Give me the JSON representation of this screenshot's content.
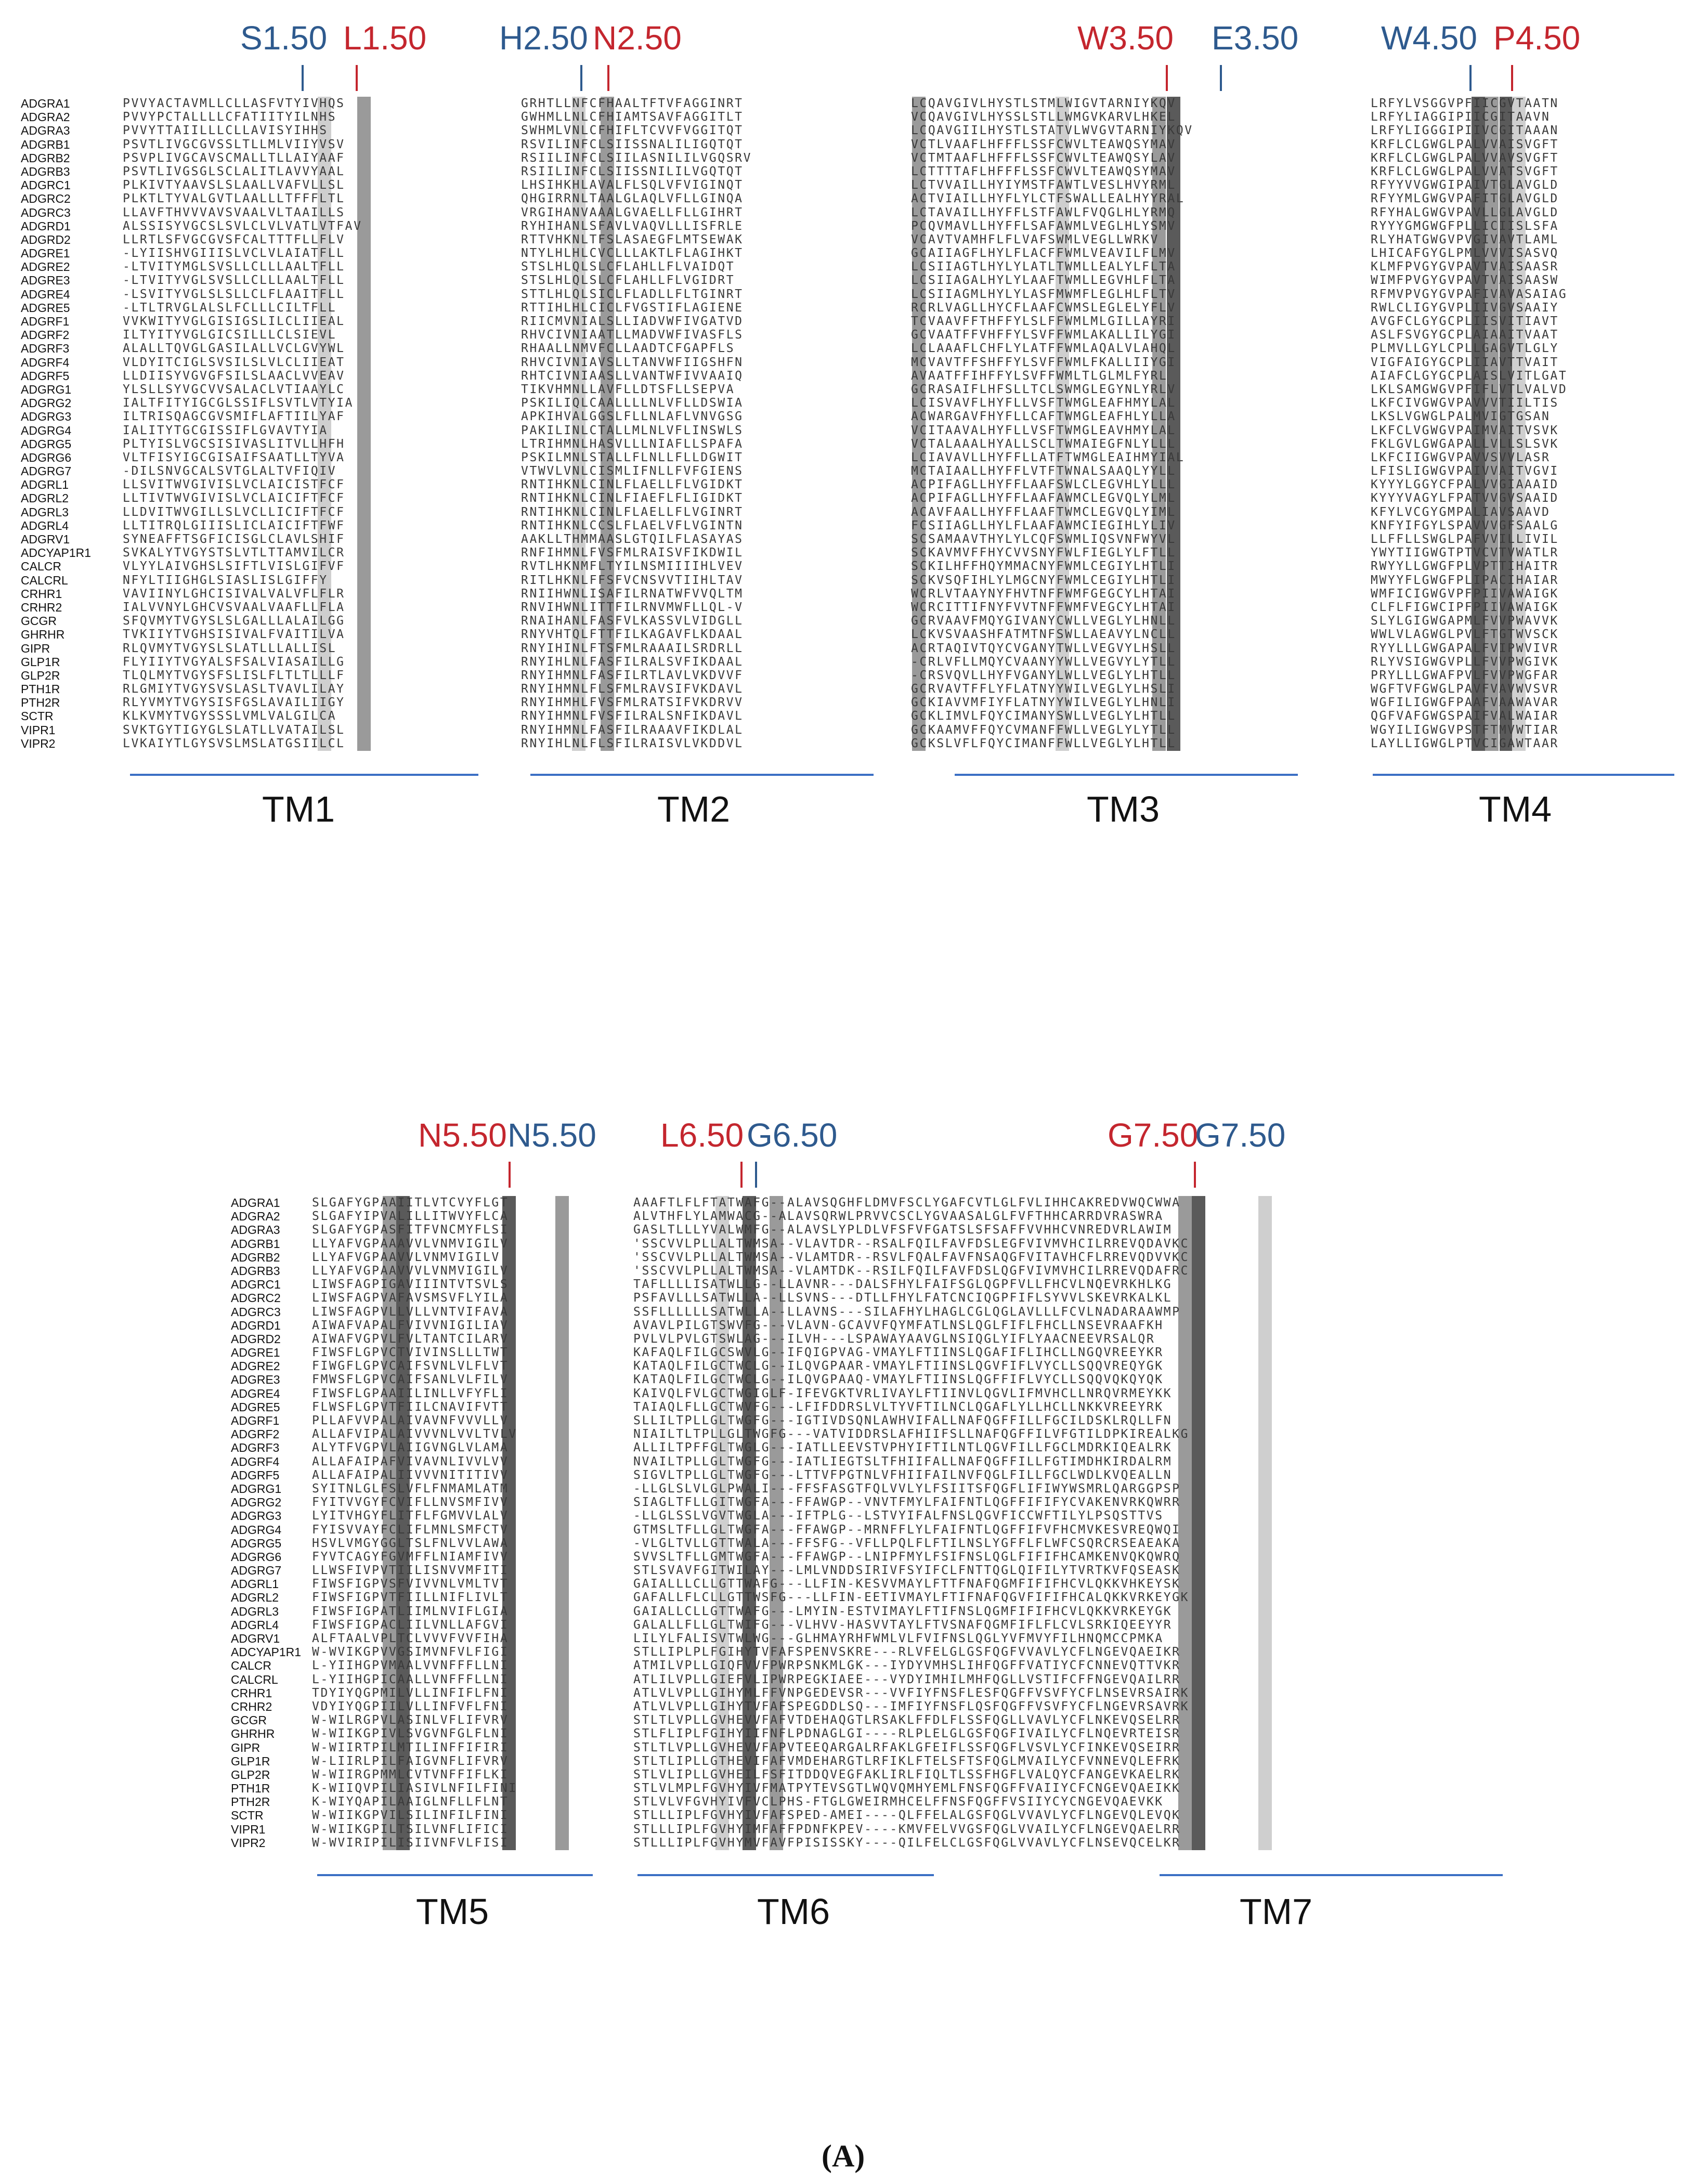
{
  "positions_top": [
    {
      "label": "S1.50",
      "color": "blue"
    },
    {
      "label": "L1.50",
      "color": "red"
    },
    {
      "label": "H2.50",
      "color": "blue"
    },
    {
      "label": "N2.50",
      "color": "red"
    },
    {
      "label": "W3.50",
      "color": "red"
    },
    {
      "label": "E3.50",
      "color": "blue"
    },
    {
      "label": "W4.50",
      "color": "blue"
    },
    {
      "label": "P4.50",
      "color": "red"
    }
  ],
  "positions_bottom": [
    {
      "label": "N5.50",
      "color": "red"
    },
    {
      "label": "N5.50",
      "color": "blue"
    },
    {
      "label": "L6.50",
      "color": "red"
    },
    {
      "label": "G6.50",
      "color": "blue"
    },
    {
      "label": "G7.50",
      "color": "red"
    },
    {
      "label": "G7.50",
      "color": "blue"
    }
  ],
  "receptors": [
    "ADGRA1",
    "ADGRA2",
    "ADGRA3",
    "ADGRB1",
    "ADGRB2",
    "ADGRB3",
    "ADGRC1",
    "ADGRC2",
    "ADGRC3",
    "ADGRD1",
    "ADGRD2",
    "ADGRE1",
    "ADGRE2",
    "ADGRE3",
    "ADGRE4",
    "ADGRE5",
    "ADGRF1",
    "ADGRF2",
    "ADGRF3",
    "ADGRF4",
    "ADGRF5",
    "ADGRG1",
    "ADGRG2",
    "ADGRG3",
    "ADGRG4",
    "ADGRG5",
    "ADGRG6",
    "ADGRG7",
    "ADGRL1",
    "ADGRL2",
    "ADGRL3",
    "ADGRL4",
    "ADGRV1",
    "ADCYAP1R1",
    "CALCR",
    "CALCRL",
    "CRHR1",
    "CRHR2",
    "GCGR",
    "GHRHR",
    "GIPR",
    "GLP1R",
    "GLP2R",
    "PTH1R",
    "PTH2R",
    "SCTR",
    "VIPR1",
    "VIPR2"
  ],
  "tm1": [
    "PVVYACTAVMLLCLLASFVTYIVHQS",
    "PVVYPCTALLLLCFATIITYILNHS",
    "PVVYTTAIILLLCLLAVISYIHHS",
    "PSVTLIVGCGVSSLTLLMLVIIYVSV",
    "PSVPLIVGCAVSCMALLTLLAIYAAF",
    "PSVTLIVGSGLSCLALITLAVVYAAL",
    "PLKIVTYAAVSLSLAALLVAFVLLSL",
    "PLKTLTYVALGVTLAALLLTFFFLTL",
    "LLAVFTHVVVAVSVAALVLTAAILLS",
    "ALSSISYVGCSLSVLCLVLVATLVTFAV",
    "LLRTLSFVGCGVSFCALTTTFLLFLV",
    "-LYIISHVGIIISLVCLVLAIATFLL",
    "-LTVITYMGLSVSLLCLLLAALTFLL",
    "-LTVITYVGLSVSLLCLLLAALTFLL",
    "-LSVITYVGLSLSLLCLFLAAITFLL",
    "-LTLTRVGLALSLFCLLLCILTFLL",
    "VVKWITYVGLGISIGSLILCLIIEAL",
    "ILTYITYVGLGICSILLLCLSIEVL",
    "ALALLTQVGLGASILALLVCLGVYWL",
    "VLDYITCIGLSVSILSLVLCLIIEAT",
    "LLDIISYVGVGFSILSLAACLVVEAV",
    "YLSLLSYVGCVVSALACLVTIAAYLC",
    "IALTFITYIGCGLSSIFLSVTLVTYIA",
    "ILTRISQAGCGVSMIFLAFTIILYAF",
    "IALITYTGCGISSIFLGVAVTYIA",
    "PLTYISLVGCSISIVASLITVLLHFH",
    "VLTFISYIGCGISAIFSAATLLTYVA",
    "-DILSNVGCALSVTGLALTVFIQIV",
    "LLSVITWVGIVISLVCLAICISTFCF",
    "LLTIVTWVGIVISLVCLAICIFTFCF",
    "LLDVITWVGILLSLVCLLICIFTFCF",
    "LLTITRQLGIIISLICLAICIFTFWF",
    "SYNEAFFTSGFICISGLCLAVLSHIF",
    "SVKALYTVGYSTSLVTLTTAMVILCR",
    "VLYYLAIVGHSLSIFTLVISLGIFVF",
    "NFYLTIIGHGLSIASLISLGIFFY",
    "VAVIINYLGHCISIVALVALVFLFLR",
    "IALVVNYLGHCVSVAALVAAFLLFLA",
    "SFQVMYTVGYSLSLGALLLALAILGG",
    "TVKIIYTVGHSISIVALFVAITILVA",
    "RLQVMYTVGYSLSLATLLLALLISL",
    "FLYIIYTVGYALSFSALVIASAILLG",
    "TLQLMYTVGYSFSLISLFLTLTLLLF",
    "RLGMIYTVGYSVSLASLTVAVLILAY",
    "RLYVMYTVGYSISFGSLAVAILIIGY",
    "KLKVMYTVGYSSSLVMLVALGILCA",
    "SVKTGYTIGYGLSLATLLVATAILSL",
    "LVKAIYTLGYSVSLMSLATGSIILCL"
  ],
  "tm2": [
    "GRHTLLNFCFHAALTFTVFAGGINRT",
    "GWHMLLNLCFHIAMTSAVFAGGITLT",
    "SWHMLVNLCFHIFLTCVVFVGGITQT",
    "RSVILINFCLSIISSNALILIGQTQT",
    "RSIILINFCLSIILASNILILVGQSRV",
    "RSIILINFCLSIISSNILILVGQTQT",
    "LHSIHKHLAVALFLSQLVFVIGINQT",
    "QHGIRRNLTAALGLAQLVFLLGINQA",
    "VRGIHANVAAALGVAELLFLLGIHRT",
    "RYHIHANLSFAVLVAQVLLLISFRLE",
    "RTTVHKNLTFSLASAEGFLMTSEWAK",
    "NTYLHLHLCVCLLLAKTLFLAGIHKT",
    "STSLHLQLSLCFLAHLLFLVAIDQT",
    "STSLHLQLSLCFLAHLLFLVGIDRT",
    "STTLHLQLSICLFLADLLFLTGINRT",
    "RTTIHLHLCICLFVGSTIFLAGIENE",
    "RIICMVNIALSLLIADVWFIVGATVD",
    "RHVCIVNIAATLLMADVWFIVASFLS",
    "RHAALLNMVFCLLAADTCFGAPFLS",
    "RHVCIVNIAVSLLTANVWFIIGSHFN",
    "RHTCIVNIAASLLVANTWFIVVAAIQ",
    "TIKVHMNLLAVFLLDTSFLLSEPVA",
    "PSKILIQLCAALLLLNLVFLLDSWIA",
    "APKIHVALGGSLFLLNLAFLVNVGSG",
    "PAKILINLCTALLMLNLVFLINSWLS",
    "LTRIHMNLHASVLLLNIAFLLSPAFA",
    "PSKILMNLSTALLFLNLLFLLDGWIT",
    "VTWVLVNLCISMLIFNLLFVFGIENS",
    "RNTIHKNLCINLFLAELLFLVGIDKT",
    "RNTIHKNLCINLFIAEFLFLIGIDKT",
    "RNTIHKNLCINLFLAELLFLVGINRT",
    "RNTIHKNLCCSLFLAELVFLVGINTN",
    "AAKLLTHMMAASLGTQILFLASAYAS",
    "RNFIHMNLFVSFMLRAISVFIKDWIL",
    "RVTLHKNMFLTYILNSMIIIIHLVEV",
    "RITLHKNLFFSFVCNSVVTIIHLTAV",
    "RNIIHWNLISAFILRNATWFVVQLTM",
    "RNVIHWNLITTFILRNVMWFLLQL-V",
    "RNAIHANLFASFVLKASSVLVIDGLL",
    "RNYVHTQLFTTFILKAGAVFLKDAAL",
    "RNYIHINLFTSFMLRAAAILSRDRLL",
    "RNYIHLNLFASFILRALSVFIKDAAL",
    "RNYIHMNLFASFILRTLAVLVKDVVF",
    "RNYIHMNLFLSFMLRAVSIFVKDAVL",
    "RNYIHMHLFVSFMLRATSIFVKDRVV",
    "RNYIHMNLFVSFILRALSNFIKDAVL",
    "RNYIHMNLFASFILRAAAVFIKDLAL",
    "RNYIHLNLFLSFILRAISVLVKDDVL"
  ],
  "tm3": [
    "LCQAVGIVLHYSTLSTMLWIGVTARNIYKQV",
    "VCQAVGIVLHYSSLSTLLWMGVKARVLHKEL",
    "LCQAVGIILHYSTLSTATVLWVGVTARNIYKQV",
    "VCTLVAAFLHFFFLSSFCWVLTEAWQSYMAV",
    "VCTMTAAFLHFFFLSSFCWVLTEAWQSYLAV",
    "LCTTTTAFLHFFFLSSFCWVLTEAWQSYMAV",
    "LCTVVAILLHYIYMSTFAWTLVESLHVYRML",
    "ACTVIAILLHYFLYLCTFSWALLEALHYYRAL",
    "LCTAVAILLHYFFLSTFAWLFVQGLHLYRMQ",
    "PCQVMAVLLHYFFLSAFAWMLVEGLHLYSMV",
    "VCAVTVAMHFLFLVAFSWMLVEGLLWRKV",
    "GCAIIAGFLHYLFLACFFWMLVEAVILFLMV",
    "LCSIIAGTLHYLYLATLTWMLLEALYLFLTA",
    "LCSIIAGALHYLYLAAFTWMLLEGVHLFLTA",
    "LCSIIAGMLHYLYLASFMWMFLEGLHLFLTV",
    "RCRLVAGLLHYCFLAAFCWMSLEGLELYFLV",
    "TCVAAVFFTHFFYLSLFFWMLMLGILLAYRI",
    "GCVAATFFVHFFYLSVFFWMLAKALLILYGI",
    "LCLAAAFLCHFLYLATFFWMLAQALVLAHQL",
    "MCVAVTFFSHFFYLSVFFWMLFKALLIIYGI",
    "AVAATFFIHFFYLSVFFWMLTLGLMLFYRL",
    "GCRASAIFLHFSLLTCLSWMGLEGYNLYRLV",
    "LCISVAVFLHYFLLVSFTWMGLEAFHMYLAL",
    "ACWARGAVFHYFLLCAFTWMGLEAFHLYLLA",
    "VCITAAVALHYFLLVSFTWMGLEAVHMYLAL",
    "VCTALAAALHYALLSCLTWMAIEGFNLYLLL",
    "LCIAVAVLLHYFFLLATFTWMGLEAIHMYIAL",
    "MCTAIAALLHYFFLVTFTWNALSAAQLYYLL",
    "ACPIFAGLLHYFFLAAFSWLCLEGVHLYLLL",
    "ACPIFAGLLHYFFLAAFAWMCLEGVQLYLML",
    "ACAVFAALLHYFFLAAFTWMCLEGVQLYIML",
    "FCSIIAGLLHYLFLAAFAWMCIEGIHLYLIV",
    "SCSAMAAVTHYLYLCQFSWMLIQSVNFWYVL",
    "SCKAVMVFFHYCVVSNYFWLFIEGLYLFTLL",
    "SCKILHFFHQYMMACNYFWMLCEGIYLHTLI",
    "SCKVSQFIHLYLMGCNYFWMLCEGIYLHTLI",
    "WCRLVTAAYNYFHVTNFFWMFGEGCYLHTAI",
    "WCRCITTIFNYFVVTNFFWMFVEGCYLHTAI",
    "GCRVAAVFMQYGIVANYCWLLVEGLYLHNLL",
    "LCKVSVAASHFATMTNFSWLLAEAVYLNCLL",
    "ACRTAQIVTQYCVGANYTWLLVEGVYLHSLL",
    "-CRLVFLLMQYCVAANYYWLLVEGVYLYTLL",
    "-CRSVQVLLHYFVGANYLWLLVEGLYLHTLL",
    "GCRVAVTFFLYFLATNYYWILVEGLYLHSLI",
    "GCKIAVVMFIYFLATNYYWILVEGLYLHNLI",
    "GCKLIMVLFQYCIMANYSWLLVEGLYLHTLL",
    "GCKAAMVFFQYCVMANFFWLLVEGLYLYTLL",
    "GCKSLVFLFQYCIMANFFWLLVEGLYLHTLL"
  ],
  "tm4": [
    "LRFYLVSGGVPFIICGVTAATN",
    "LRFYLIAGGIPIICGITAAVN",
    "LRFYLIGGGIPIIVCGITAAAN",
    "KRFLCLGWGLPALVVAISVGFT",
    "KRFLCLGWGLPALVVAVSVGFT",
    "KRFLCLGWGLPALVVATSVGFT",
    "RFYYVVGWGIPAIVTGLAVGLD",
    "RFYYMLGWGVPAFITGLAVGLD",
    "RFYHALGWGVPAVLLGLAVGLD",
    "RYYYGMGWGFPLLICIISLSFA",
    "RLYHATGWGVPVGIVAVTLAML",
    "LHICAFGYGLPMLVVVISASVQ",
    "KLMFPVGYGVPAVTVAISAASR",
    "WIMFPVGYGVPAVTVAISAASW",
    "RFMVPVGYGVPAFIVAVASAIAG",
    "RWLCLIGYGVPLIIVGVSAAIY",
    "AVGFCLGYGCPLIISVITIAVT",
    "ASLFSVGYGCPLAIAAITVAAT",
    "PLMVLLGYLCPLLGAGVTLGLY",
    "VIGFAIGYGCPLIIAVTTVAIT",
    "AIAFCLGYGCPLAISLVITLGAT",
    "LKLSAMGWGVPFIFLVTLVALVD",
    "LKFCIVGWGVPAVVVTIILTIS",
    "LKSLVGWGLPALMVIGTGSAN",
    "LKFCLVGWGVPAIMVAITVSVK",
    "FKLGVLGWGAPALLVLLSLSVK",
    "LKFCIIGWGVPAVVSVVLASR",
    "LFISLIGWGVPAIVVAITVGVI",
    "KYYYLGGYCFPALVVGIAAAID",
    "KYYYVAGYLFPATVVGVSAAID",
    "KFYLVCGYGMPALIAVSAAVD",
    "KNFYIFGYLSPAVVVGFSAALG",
    "LLFFLLSWGLPAFVVILLIVIL",
    "YWYTIIGWGTPTVCVTVWATLR",
    "RWYYLLGWGFPLVPTTIHAITR",
    "MWYYFLGWGFPLIPACIHAIAR",
    "WMFICIGWGVPFPIIVAWAIGK",
    "CLFLFIGWCIPFPIIVAWAIGK",
    "SLYLGIGWGAPMLFVVPWAVVK",
    "WWLVLAGWGLPVLFTGTWVSCK",
    "RYYLLLGWGAPALFVIPWVIVR",
    "RLYVSIGWGVPLLFVVPWGIVK",
    "PRYLLLGWAFPVLFVVPWGFAR",
    "WGFTVFGWGLPAVFVAVWVSVR",
    "WGFILIGWGFPAAFVAAWAVAR",
    "QGFVAFGWGSPAIFVALWAIAR",
    "WGYILIGWGVPSTFTMVWTIAR",
    "LAYLLIGWGLPTVCIGAWTAAR"
  ],
  "tm5": [
    "SLGAFYGPAAIITLVTCVYFLGT",
    "SLGAFYIPVALILLITWVYFLCA",
    "SLGAFYGPASFITFVNCMYFLSI",
    "LLYAFVGPAAAVVLVNMVIGILV",
    "LLYAFVGPAAVVLVNMVIGILV",
    "LLYAFVGPAAVVVLVNMVIGILV",
    "LIWSFAGPIGAVIIINTVTSVLS",
    "LIWSFAGPVAFAVSMSVFLYILA",
    "LIWSFAGPVLLVLLVNTVIFAVA",
    "AIWAFVAPALFVIVVNIGILIAV",
    "AIWAFVGPVLFVLTANTCILARV",
    "FIWSFLGPVCTVIVINSLLLTWT",
    "FIWGFLGPVCAIFSVNLVLFLVT",
    "FMWSFLGPVCAIFSANLVLFILV",
    "FIWSFLGPAAIILINLLVFYFLI",
    "FLWSFLGPVTFIILCNAVIFVTT",
    "PLLAFVVPALAIVAVNFVVVLLV",
    "ALLAFVIPALAIVVVNLVVLTVLV",
    "ALYTFVGPVLAIIGVNGLVLAMA",
    "ALLAFAIPAFVIVAVNLIVVLVV",
    "ALLAFAIPALIIVVVNITITIVV",
    "SYITNLGLFSLVFLFNMAMLATM",
    "FYITVVGYFCVIFLLNVSMFIVV",
    "LYITVHGYFLITFLFGMVVLALV",
    "FYISVVAYFCLIFLMNLSMFCTV",
    "HSVLVMGYGGLTSLFNLVVLAWA",
    "FYVTCAGYFGVMFFLNIAMFIVV",
    "LLWSFIVPVTIILISNVVMFITI",
    "FIWSFIGPVSFVIVVNLVMLTVT",
    "FIWSFIGPVTFIILLNIFLIVLT",
    "FIWSFIGPATLIIMLNVIFLGIA",
    "FIWSFIGPACLIILVNLLAFGVI",
    "ALFTAALVPLTCLVVVFVVFIHA",
    "W-WVIKGPVVGSIMVNFVLFIGI",
    "L-YIIHGPVMAALVVNFFFLLNI",
    "L-YIIHGPICAALLVNFFFLLNI",
    "TDYIYQGPMILVLLINFIFLFNI",
    "VDYIYQGPIILVLLINFVFLFNI",
    "W-WILRGPVLASINLVFLIFVRV",
    "W-WIIKGPIVLSVGVNFGLFLNI",
    "W-WIIRTPILMTILINFFIFIRI",
    "W-LIIRLPILFAIGVNFLIFVRV",
    "W-WIIRGPMMLCVTVNFFIFLKI",
    "K-WIIQVPILIASIVLNFILFINI",
    "K-WIYQAPILAAIGLNFLLFLNT",
    "W-WIIKGPVILSILINFILFINI",
    "W-WIIKGPILTSILVNFLIFICI",
    "W-WVIRIPILISIIVNFVLFISI"
  ],
  "tm6": [
    "AAAFTLFLFTATWAFG--ALAVSQGHFLDMVFSCLYGAFCVTLGLFVLIHHCAKREDVWQCWWA",
    "ALVTHFLYLAMWACG--ALAVSQRWLPRVVCSCLYGVAASALGLFVFTHHCARRDVRASWRA",
    "GASLTLLLYVALWMFG--ALAVSLYPLDLVFSFVFGATSLSFSAFFVVHHCVNREDVRLAWIM",
    "'SSCVVLPLLALTWMSA--VLAVTDR--RSALFQILFAVFDSLEGFVIVMVHCILRREVQDAVKC",
    "'SSCVVLPLLALTWMSA--VLAMTDR--RSVLFQALFAVFNSAQGFVITAVHCFLRREVQDVVKC",
    "'SSCVVLPLLALTWMSA--VLAMTDK--RSILFQILFAVFDSLQGFVIVMVHCILRREVQDAFRC",
    "TAFLLLLISATWLLG--LLAVNR---DALSFHYLFAIFSGLQGPFVLLFHCVLNQEVRKHLKG",
    "PSFAVLLLSATWLLA--LLSVNS---DTLLFHYLFATCNCIQGPFIFLSYVVLSKEVRKALKL",
    "SSFLLLLLLSATWLLA--LLAVNS---SILAFHYLHAGLCGLQGLAVLLLFCVLNADARAAWMP",
    "AVAVLPILGTSWVFG---VLAVN-GCAVVFQYMFATLNSLQGLFIFLFHCLLNSEVRAAFKH",
    "PVLVLPVLGTSWLAG---ILVH---LSPAWAYAAVGLNSIQGLYIFLYAACNEEVRSALQR",
    "KAFAQLFILGCSWVLG--IFQIGPVAG-VMAYLFTIINSLQGAFIFLIHCLLNGQVREEYKR",
    "KATAQLFILGCTWCLG--ILQVGPAAR-VMAYLFTIINSLQGVFIFLVYCLLSQQVREQYGK",
    "KATAQLFILGCTWCLG--ILQVGPAAQ-VMAYLFTIINSLQGFFIFLVYCLLSQQVQKQYQK",
    "KAIVQLFVLGCTWGIGLF-IFEVGKTVRLIVAYLFTIINVLQGVLIFMVHCLLNRQVRMEYKK",
    "TAIAQLFLLGCTWVFG---LFIFDDRSLVLTYVFTILNCLQGAFLYLLHCLLNKKVREEYRK",
    "SLLILTPLLGLTWGFG---IGTIVDSQNLAWHVIFALLNAFQGFFILLFGCILDSKLRQLLFN",
    "NIAILTLTPLLGLTWGFG---VATVIDDRSLAFHIIFSLLNAFQGFFILVFGTILDPKIREALKG",
    "ALLILTPFFGLTWGLG---IATLLEEVSTVPHYIFTILNTLQGVFILLFGCLMDRKIQEALRK",
    "NVAILTPLLGLTWGFG---IATLIEGTSLTFHIIFALLNAFQGFFILLFGTIMDHKIRDALRM",
    "SIGVLTPLLGLTWGFG---LTTVFPGTNLVFHIIFAILNVFQGLFILLFGCLWDLKVQEALLN",
    "-LLGLSLVLGLPWALI---FFSFASGTFQLVVLYLFSIITSFQGFLIFIWYWSMRLQARGGPSP",
    "SIAGLTFLLGITWGFA---FFAWGP--VNVTFMYLFAIFNTLQGFFIFIFYCVAKENVRKQWRR",
    "-LLGLSSLVGVTWGLA---IFTPLG--LSTVYIFALFNSLQGVFICCWFTILYLPSQSTTVS",
    "GTMSLTFLLGLTWGFA---FFAWGP--MRNFFLYLFAIFNTLQGFFIFVFHCMVKESVREQWQI",
    "-VLGLTVLLGTTWALA---FFSFG--VFLLPQLFLFTILNSLYGFFLFLWFCSQRCRSEAEAKA",
    "SVVSLTFLLGMTWGFA---FFAWGP--LNIPFMYLFSIFNSLQGLFIFIFHCAMKENVQKQWRQ",
    "STLSVAVFGITWILAY---LMLVNDDSIRIVFSYIFCLFNTTQGLQIFILYTVRTKVFQSEASK",
    "GAIALLLCLLGTTWAFG---LLFIN-KESVVMAYLFTTFNAFQGMFIFIFHCVLQKKVHKEYSK",
    "GAFALLFLCLLGTTWSFG---LLFIN-EETIVMAYLFTIFNAFQGVFIFIFHCALQKKVRKEYGK",
    "GAIALLCLLGTTWAFG---LMYIN-ESTVIMAYLFTIFNSLQGMFIFIFHCVLQKKVRKEYGK",
    "GALALLFLLGLTWIFG---VLHVV-HASVVTAYLFTVSNAFQGMFIFLFLCVLSRKIQEEYYR",
    "LILYLFALISVTWLWG---GLHMAYRHFWMLVLFVIFNSLQGLYVFMVYFILHNQMCCPMKA",
    "STLLIPLPLFGIHYTVFAFSPENVSKRE---RLVFELGLGSFQGFVVAVLYCFLNGEVQAEIKR",
    "ATMILVPLLGIQFVVFPWRPSNKMLGK---IYDYVMHSLIHFQGFFVATIYCFCNNEVQTTVKR",
    "ATLILVPLLGIEFVLIPWRPEGKIAEE---VYDYIMHILMHFQGLLVSTIFCFFNGEVQAILRR",
    "ATLVLVPLLGIHYMLFFVNPGEDEVSR---VVFIYFNSFLESFQGFFVSVFYCFLNSEVRSAIRK",
    "ATLVLVPLLGIHYTVFAFSPEGDDLSQ---IMFIYFNSFLQSFQGFFVSVFYCFLNGEVRSAVRK",
    "STLTLVPLLGVHEVVFAFVTDEHAQGTLRSAKLFFDLFLSSFQGLLVAVLYCFLNKEVQSELRR",
    "STLFLIPLFGIHYIIFNFLPDNAGLGI----RLPLELGLGSFQGFIVAILYCFLNQEVRTEISR",
    "STLTLVPLLGVHEVVFAPVTEEQARGALRFAKLGFEIFLSSFQGFLVSVLYCFINKEVQSEIRR",
    "STLTLIPLLGTHEVIFAFVMDEHARGTLRFIKLFTELSFTSFQGLMVAILYCFVNNEVQLEFRK",
    "STLVLIPLLGVHEILFSFITDDQVEGFAKLIRLFIQLTLSSFHGFLVALQYCFANGEVKAELRK",
    "STLVLMPLFGVHYIVFMATPYTEVSGTLWQVQMHYEMLFNSFQGFFVAIIYCFCNGEVQAEIKK",
    "STLVLVFGVHYIVFVCLPHS-FTGLGWEIRMHCELFFNSFQGFFVSIIYCYCNGEVQAEVKK",
    "STLLLIPLFGVHYIVFAFSPED-AMEI----QLFFELALGSFQGLVVAVLYCFLNGEVQLEVQK",
    "STLLLIPLFGVHYIMFAFFPDNFKPEV----KMVFELVVGSFQGLVVAILYCFLNGEVQAELRR",
    "STLLLIPLFGVHYMVFAVFPISISSKY----QILFELCLGSFQGLVVAVLYCFLNSEVQCELKR"
  ],
  "tm_labels": [
    "TM1",
    "TM2",
    "TM3",
    "TM4",
    "TM5",
    "TM6",
    "TM7"
  ],
  "caption": "(A)"
}
